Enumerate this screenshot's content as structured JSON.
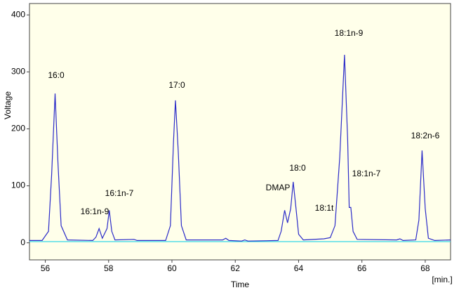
{
  "chart_data": {
    "type": "line",
    "y_label": "Voltage",
    "x_label": "Time",
    "x_unit": "[min.]",
    "xlim": [
      55.5,
      68.8
    ],
    "ylim": [
      -30,
      420
    ],
    "xticks": [
      56,
      58,
      60,
      62,
      64,
      66,
      68
    ],
    "yticks": [
      0,
      100,
      200,
      300,
      400
    ],
    "background": "#ffffea",
    "series": [
      {
        "color": "#2b2bc8",
        "x": [
          55.5,
          55.9,
          56.1,
          56.2,
          56.31,
          56.4,
          56.5,
          56.7,
          57.5,
          57.6,
          57.7,
          57.8,
          57.95,
          58.02,
          58.1,
          58.2,
          58.8,
          58.9,
          59.8,
          59.95,
          60.05,
          60.11,
          60.2,
          60.3,
          60.45,
          61.6,
          61.7,
          61.8,
          62.2,
          62.3,
          62.4,
          63.35,
          63.45,
          63.56,
          63.65,
          63.75,
          63.83,
          63.92,
          64.0,
          64.15,
          64.8,
          65.0,
          65.15,
          65.3,
          65.45,
          65.55,
          65.6,
          65.65,
          65.72,
          65.85,
          67.1,
          67.2,
          67.3,
          67.7,
          67.8,
          67.9,
          68.0,
          68.1,
          68.3,
          68.8
        ],
        "values": [
          4,
          4,
          20,
          120,
          262,
          140,
          30,
          5,
          4,
          10,
          25,
          8,
          25,
          57,
          20,
          5,
          6,
          4,
          4,
          30,
          180,
          250,
          160,
          30,
          5,
          5,
          8,
          4,
          3,
          5,
          3,
          4,
          20,
          57,
          35,
          60,
          107,
          60,
          15,
          5,
          7,
          9,
          30,
          150,
          330,
          180,
          62,
          62,
          20,
          6,
          5,
          7,
          4,
          5,
          40,
          162,
          60,
          8,
          4,
          5
        ]
      },
      {
        "color": "#33d6e6",
        "x": [
          55.5,
          68.8
        ],
        "values": [
          2,
          2
        ]
      }
    ],
    "annotations": [
      "16:0",
      "16:1n-9",
      "16:1n-7",
      "17:0",
      "DMAP",
      "18:0",
      "18:1t",
      "18:1n-9",
      "18:1n-7",
      "18:2n-6"
    ]
  }
}
